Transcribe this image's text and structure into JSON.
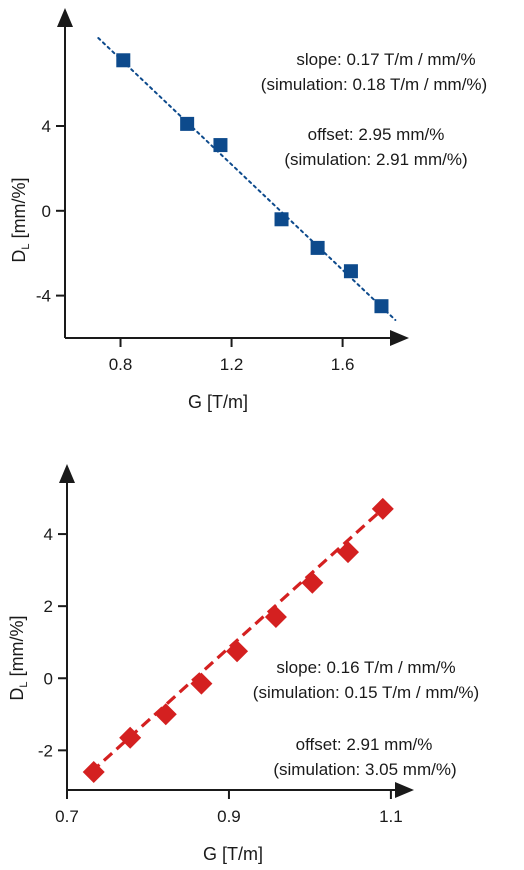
{
  "chart_data": [
    {
      "type": "scatter",
      "xlabel": "G [T/m]",
      "ylabel_main": "D",
      "ylabel_sub": "L",
      "ylabel_unit": " [mm/%]",
      "xlim": [
        0.6,
        1.85
      ],
      "ylim": [
        -6,
        9
      ],
      "xticks": [
        0.8,
        1.2,
        1.6
      ],
      "yticks": [
        -4,
        0,
        4
      ],
      "xtick_labels": [
        "0.8",
        "1.2",
        "1.6"
      ],
      "ytick_labels": [
        "-4",
        "0",
        "4"
      ],
      "marker": "square",
      "marker_color": "#0d4a8c",
      "fit_style": "dotted",
      "fit_line": {
        "x": [
          0.72,
          1.79
        ],
        "y": [
          8.15,
          -5.15
        ]
      },
      "series": [
        {
          "x": [
            0.81,
            1.04,
            1.16,
            1.38,
            1.51,
            1.63,
            1.74
          ],
          "y": [
            7.1,
            4.1,
            3.1,
            -0.4,
            -1.75,
            -2.85,
            -4.5
          ]
        }
      ],
      "annotations": [
        "slope: 0.17 T/m / mm/%",
        "(simulation: 0.18 T/m / mm/%)",
        "offset: 2.95 mm/%",
        "(simulation: 2.91 mm/%)"
      ]
    },
    {
      "type": "scatter",
      "xlabel": "G [T/m]",
      "ylabel_main": "D",
      "ylabel_sub": "L",
      "ylabel_unit": " [mm/%]",
      "xlim": [
        0.7,
        1.11
      ],
      "ylim": [
        -3.1,
        5.5
      ],
      "xticks": [
        0.7,
        0.9,
        1.1
      ],
      "yticks": [
        -2,
        0,
        2,
        4
      ],
      "xtick_labels": [
        "0.7",
        "0.9",
        "1.1"
      ],
      "ytick_labels": [
        "-2",
        "0",
        "2",
        "4"
      ],
      "marker": "diamond",
      "marker_color": "#d42020",
      "fit_style": "dashed",
      "fit_line": {
        "x": [
          0.73,
          1.09
        ],
        "y": [
          -2.6,
          4.7
        ]
      },
      "series": [
        {
          "x": [
            0.733,
            0.778,
            0.822,
            0.866,
            0.91,
            0.958,
            1.003,
            1.047,
            1.09
          ],
          "y": [
            -2.6,
            -1.65,
            -1.0,
            -0.15,
            0.75,
            1.7,
            2.65,
            3.5,
            4.7
          ]
        }
      ],
      "annotations": [
        "slope: 0.16 T/m / mm/%",
        "(simulation: 0.15 T/m / mm/%)",
        "offset: 2.91 mm/%",
        "(simulation: 3.05 mm/%)"
      ]
    }
  ]
}
